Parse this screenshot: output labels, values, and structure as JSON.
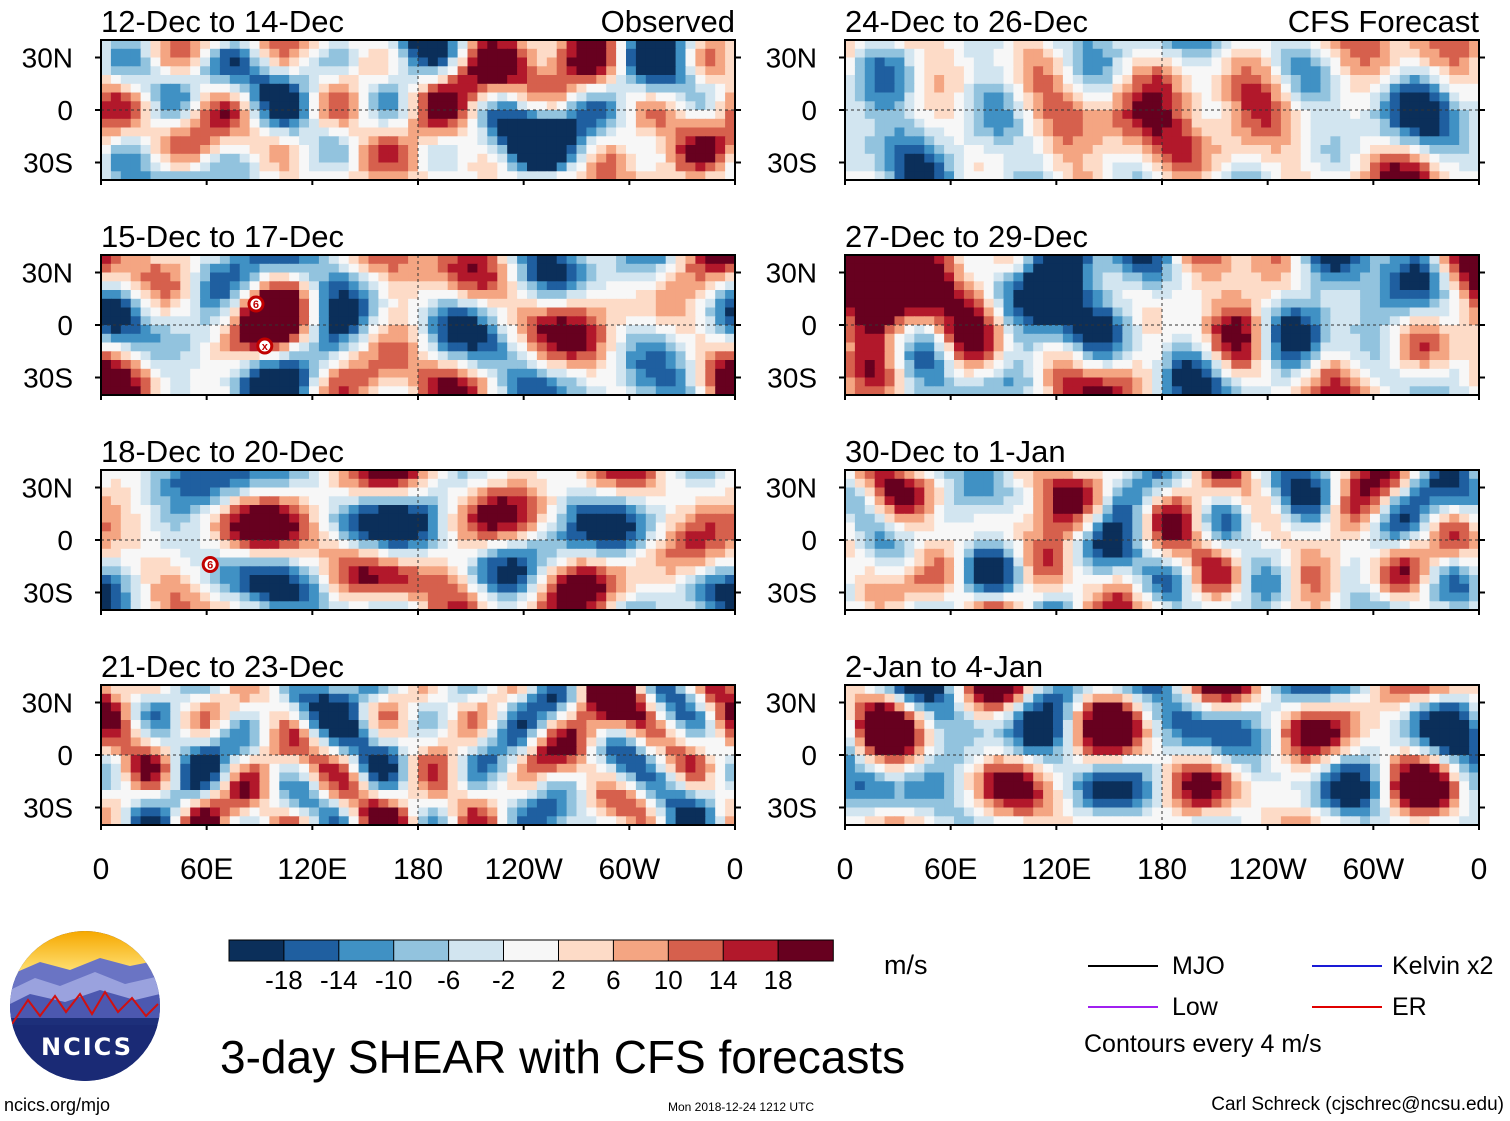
{
  "chart_data": {
    "type": "heatmap",
    "title": "3-day SHEAR with CFS forecasts",
    "units": "m/s",
    "x_tick_labels": [
      "0",
      "60E",
      "120E",
      "180",
      "120W",
      "60W",
      "0"
    ],
    "y_tick_labels": [
      "30N",
      "0",
      "30S"
    ],
    "columns": [
      "Observed",
      "CFS Forecast"
    ],
    "colorbar": {
      "tick_labels": [
        "-18",
        "-14",
        "-10",
        "-6",
        "-2",
        "2",
        "6",
        "10",
        "14",
        "18"
      ],
      "colors": [
        "#0b2f5a",
        "#1f5fa0",
        "#4091c4",
        "#92c3de",
        "#d2e5f0",
        "#f7f7f7",
        "#fddbc7",
        "#f4a582",
        "#d6604d",
        "#b2182b",
        "#67001f"
      ]
    },
    "panels": [
      {
        "period": "12-Dec to 14-Dec",
        "column": "Observed",
        "seed": 11
      },
      {
        "period": "15-Dec to 17-Dec",
        "column": "Observed",
        "seed": 23
      },
      {
        "period": "18-Dec to 20-Dec",
        "column": "Observed",
        "seed": 37
      },
      {
        "period": "21-Dec to 23-Dec",
        "column": "Observed",
        "seed": 41
      },
      {
        "period": "24-Dec to 26-Dec",
        "column": "CFS Forecast",
        "seed": 53
      },
      {
        "period": "27-Dec to 29-Dec",
        "column": "CFS Forecast",
        "seed": 67
      },
      {
        "period": "30-Dec to 1-Jan",
        "column": "CFS Forecast",
        "seed": 71
      },
      {
        "period": "2-Jan to 4-Jan",
        "column": "CFS Forecast",
        "seed": 89
      }
    ],
    "storm_markers": [
      {
        "panel": "15-Dec to 17-Dec",
        "lon": 88,
        "lat": 12,
        "label": "6"
      },
      {
        "panel": "15-Dec to 17-Dec",
        "lon": 93,
        "lat": -12,
        "label": "x"
      },
      {
        "panel": "18-Dec to 20-Dec",
        "lon": 62,
        "lat": -14,
        "label": "6"
      }
    ]
  },
  "legend": {
    "items": [
      {
        "label": "MJO",
        "color": "#000000"
      },
      {
        "label": "Kelvin x2",
        "color": "#1a1ad6"
      },
      {
        "label": "Low",
        "color": "#a020f0"
      },
      {
        "label": "ER",
        "color": "#e00000"
      }
    ],
    "contour_note": "Contours every 4 m/s"
  },
  "footer": {
    "site": "ncics.org/mjo",
    "timestamp": "Mon 2018-12-24 1212 UTC",
    "author": "Carl Schreck (cjschrec@ncsu.edu)"
  },
  "logo": {
    "text": "NCICS"
  }
}
